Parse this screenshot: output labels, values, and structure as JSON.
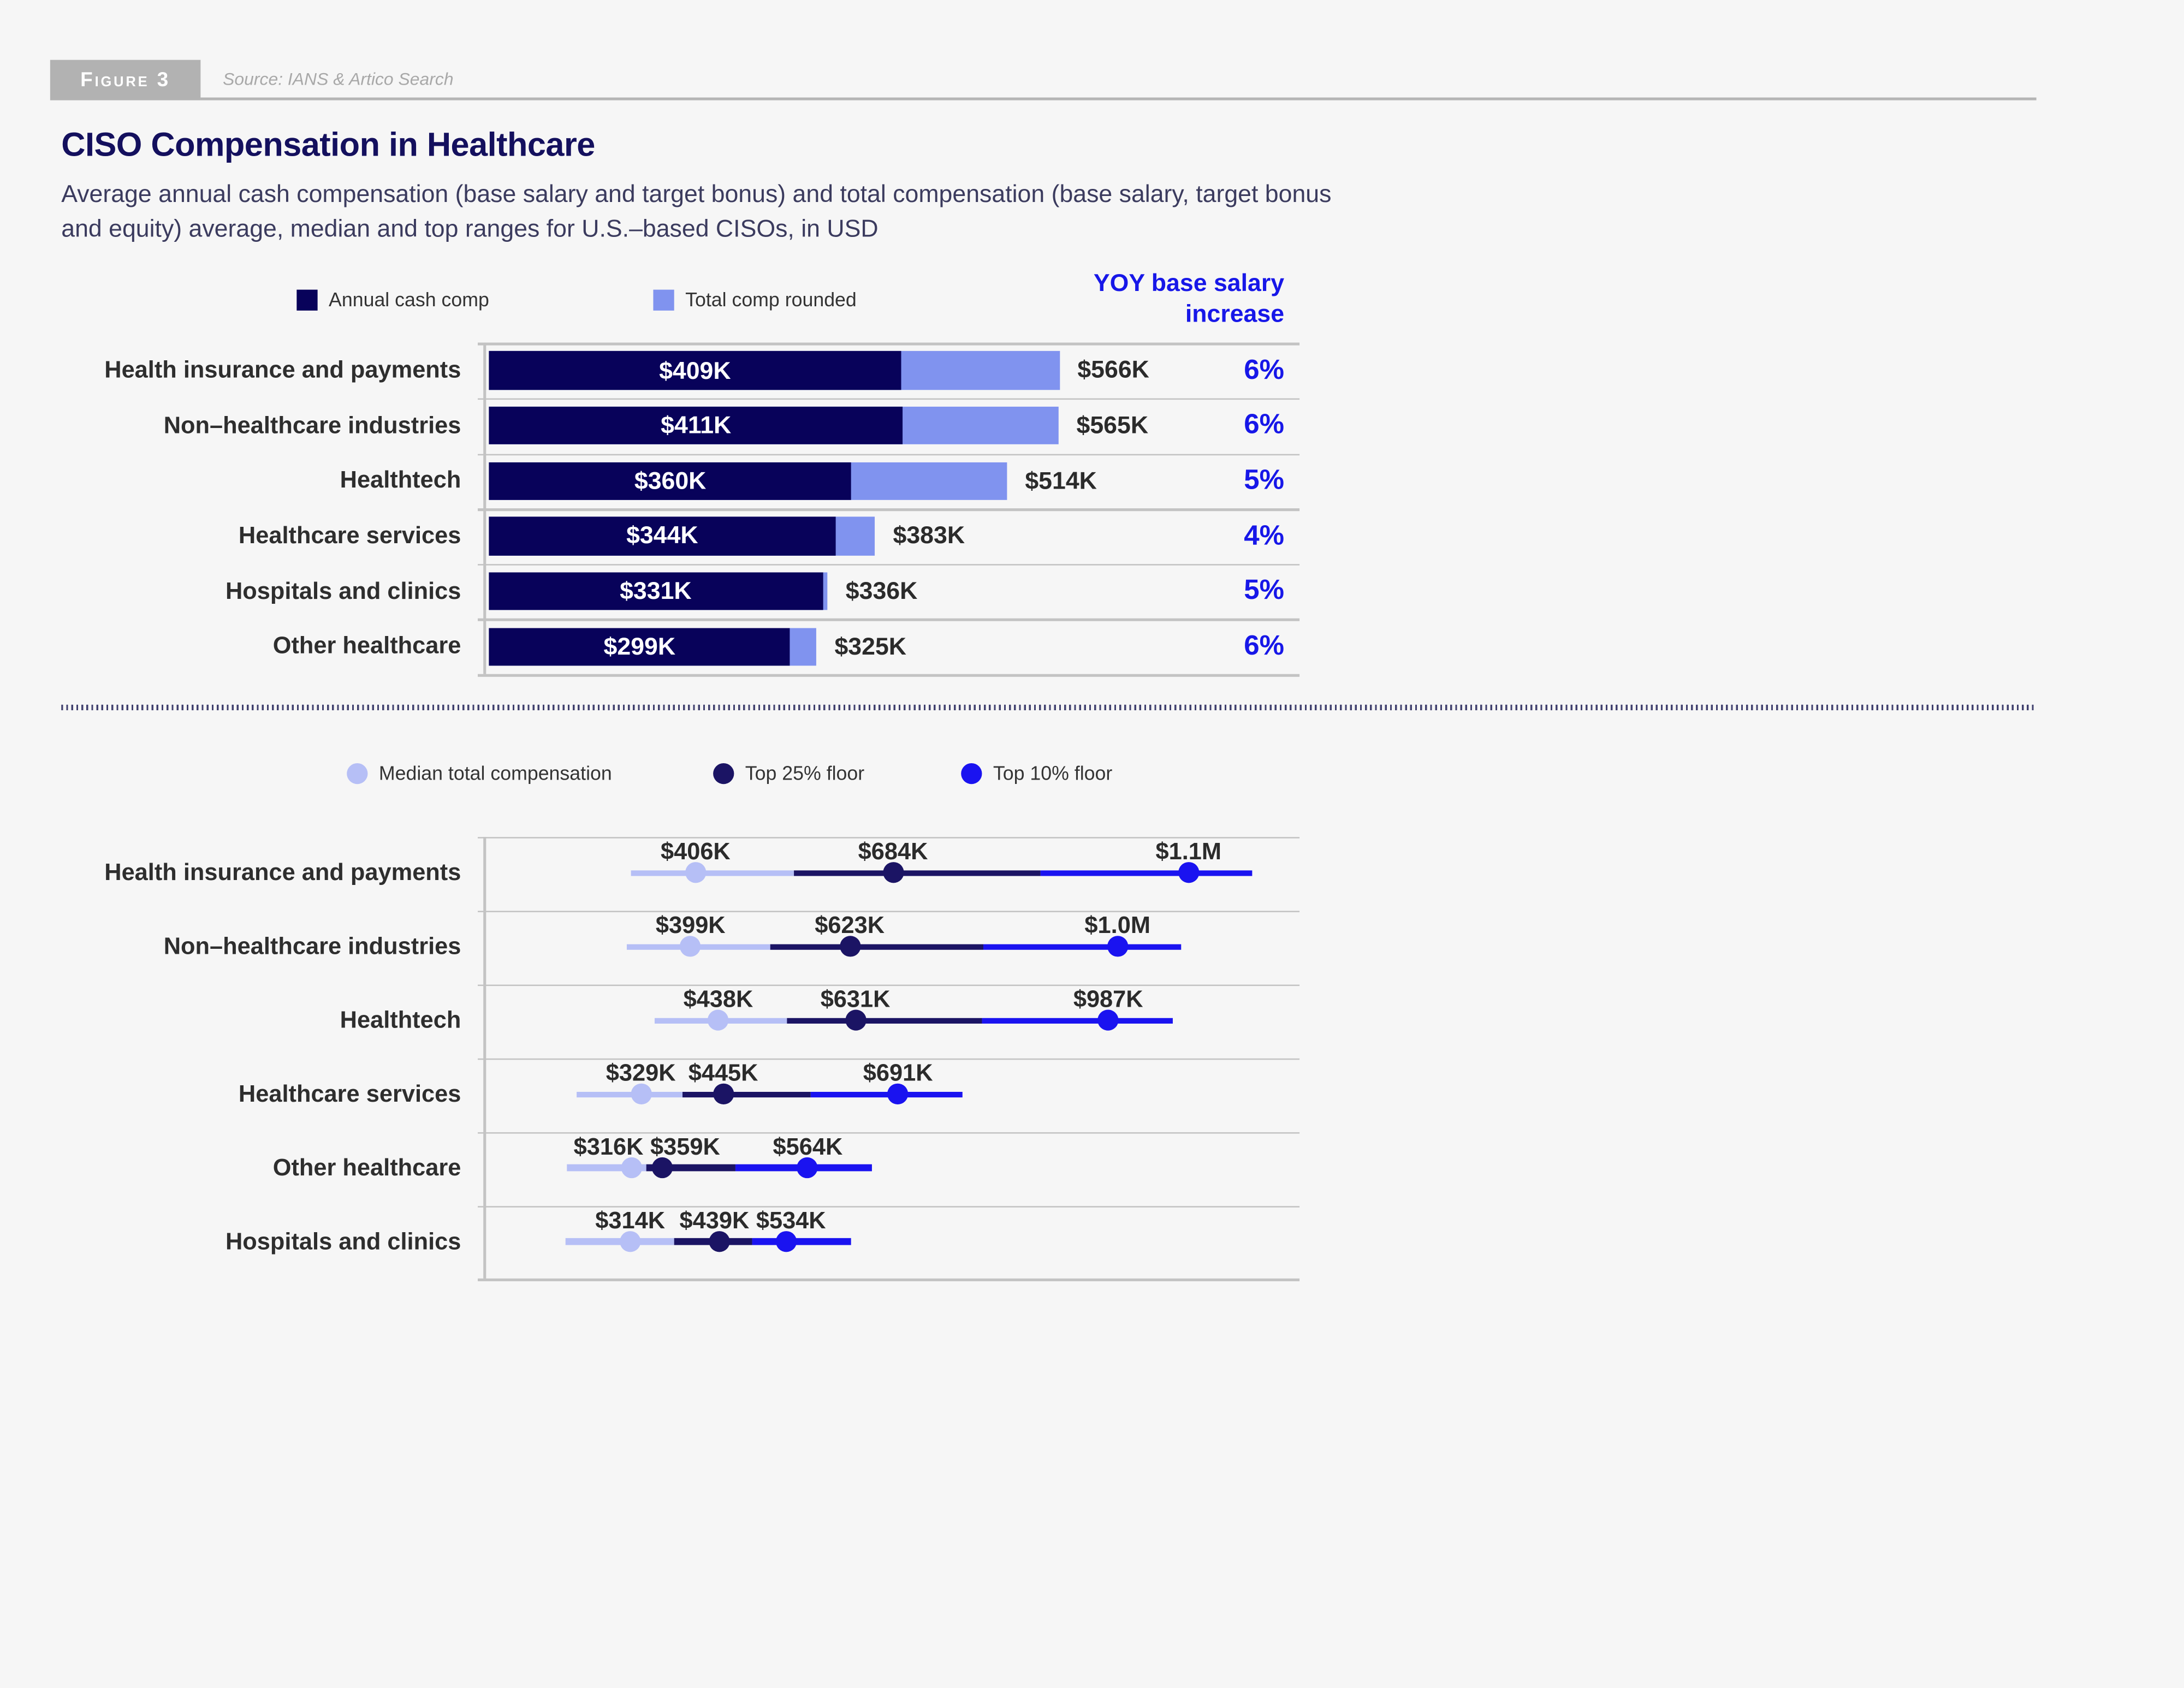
{
  "figure": {
    "badge": "Figure 3",
    "source": "Source: IANS & Artico Search"
  },
  "header": {
    "title": "CISO Compensation in Healthcare",
    "subtitle": "Average annual cash compensation (base salary and target bonus) and total compensation (base salary, target bonus and equity) average, median and top ranges for U.S.–based CISOs, in USD"
  },
  "colors": {
    "navy": "#08025a",
    "peri": "#8093ef",
    "median": "#b6bff6",
    "top25": "#1b1464",
    "top10": "#1a13f0",
    "yoyblue": "#1717e8"
  },
  "chart_data": [
    {
      "type": "bar",
      "title": "Annual cash comp vs total comp rounded, by segment",
      "legend": [
        "Annual cash comp",
        "Total comp rounded"
      ],
      "yoy_header_lines": [
        "YOY base salary",
        "increase"
      ],
      "categories": [
        "Health insurance and payments",
        "Non–healthcare industries",
        "Healthtech",
        "Healthcare services",
        "Hospitals and clinics",
        "Other healthcare"
      ],
      "series": [
        {
          "name": "Annual cash comp",
          "values_k": [
            409,
            411,
            360,
            344,
            331,
            299
          ],
          "labels": [
            "$409K",
            "$411K",
            "$360K",
            "$344K",
            "$331K",
            "$299K"
          ]
        },
        {
          "name": "Total comp rounded",
          "values_k": [
            566,
            565,
            514,
            383,
            336,
            325
          ],
          "labels": [
            "$566K",
            "$565K",
            "$514K",
            "$383K",
            "$336K",
            "$325K"
          ]
        }
      ],
      "yoy_increase": [
        "6%",
        "6%",
        "5%",
        "4%",
        "5%",
        "6%"
      ],
      "xlabel": "",
      "ylabel": "",
      "xlim_k": [
        0,
        800
      ],
      "grid": false,
      "legend_position": "top"
    },
    {
      "type": "scatter",
      "title": "Median, top 25% floor and top 10% floor total compensation, by segment",
      "legend": [
        "Median total compensation",
        "Top 25% floor",
        "Top 10% floor"
      ],
      "categories": [
        "Health insurance and payments",
        "Non–healthcare industries",
        "Healthtech",
        "Healthcare services",
        "Other healthcare",
        "Hospitals and clinics"
      ],
      "series": [
        {
          "name": "Median total compensation",
          "values_k": [
            406,
            399,
            438,
            329,
            316,
            314
          ],
          "labels": [
            "$406K",
            "$399K",
            "$438K",
            "$329K",
            "$316K",
            "$314K"
          ]
        },
        {
          "name": "Top 25% floor",
          "values_k": [
            684,
            623,
            631,
            445,
            359,
            439
          ],
          "labels": [
            "$684K",
            "$623K",
            "$631K",
            "$445K",
            "$359K",
            "$439K"
          ]
        },
        {
          "name": "Top 10% floor",
          "values_k": [
            1100,
            1000,
            987,
            691,
            564,
            534
          ],
          "labels": [
            "$1.1M",
            "$1.0M",
            "$987K",
            "$691K",
            "$564K",
            "$534K"
          ]
        }
      ],
      "xlabel": "",
      "ylabel": "",
      "xlim_k": [
        100,
        1250
      ],
      "grid": false,
      "legend_position": "top"
    }
  ]
}
